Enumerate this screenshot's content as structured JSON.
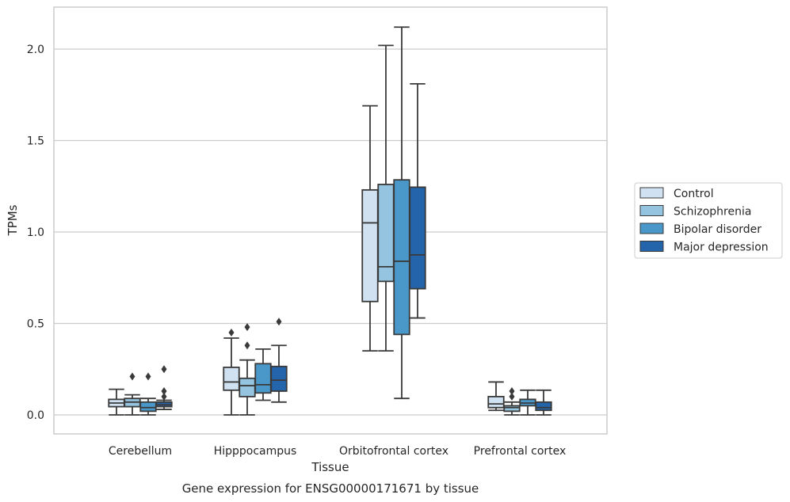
{
  "caption": "Gene expression for ENSG00000171671 by tissue",
  "chart_data": {
    "type": "box",
    "xlabel": "Tissue",
    "ylabel": "TPMs",
    "ylim": [
      -0.1,
      2.23
    ],
    "yticks": [
      0.0,
      0.5,
      1.0,
      1.5,
      2.0
    ],
    "ytick_labels": [
      "0.0",
      "0.5",
      "1.0",
      "1.5",
      "2.0"
    ],
    "grid": "horizontal",
    "legend_position": "right",
    "categories": [
      "Cerebellum",
      "Hipppocampus",
      "Orbitofrontal cortex",
      "Prefrontal cortex"
    ],
    "series": [
      {
        "name": "Control",
        "color": "#d0e1f2",
        "boxes": [
          {
            "whislo": 0.0,
            "q1": 0.045,
            "med": 0.065,
            "q3": 0.085,
            "whishi": 0.14,
            "fliers": []
          },
          {
            "whislo": 0.0,
            "q1": 0.135,
            "med": 0.18,
            "q3": 0.26,
            "whishi": 0.42,
            "fliers": [
              0.45
            ]
          },
          {
            "whislo": 0.35,
            "q1": 0.62,
            "med": 1.05,
            "q3": 1.23,
            "whishi": 1.69,
            "fliers": []
          },
          {
            "whislo": 0.025,
            "q1": 0.04,
            "med": 0.06,
            "q3": 0.1,
            "whishi": 0.18,
            "fliers": []
          }
        ]
      },
      {
        "name": "Schizophrenia",
        "color": "#94c4df",
        "boxes": [
          {
            "whislo": 0.0,
            "q1": 0.045,
            "med": 0.07,
            "q3": 0.09,
            "whishi": 0.11,
            "fliers": [
              0.21
            ]
          },
          {
            "whislo": 0.0,
            "q1": 0.1,
            "med": 0.16,
            "q3": 0.2,
            "whishi": 0.3,
            "fliers": [
              0.38,
              0.48
            ]
          },
          {
            "whislo": 0.35,
            "q1": 0.73,
            "med": 0.81,
            "q3": 1.26,
            "whishi": 2.02,
            "fliers": []
          },
          {
            "whislo": 0.0,
            "q1": 0.02,
            "med": 0.04,
            "q3": 0.05,
            "whishi": 0.07,
            "fliers": [
              0.1,
              0.13
            ]
          }
        ]
      },
      {
        "name": "Bipolar disorder",
        "color": "#4a98c9",
        "boxes": [
          {
            "whislo": 0.0,
            "q1": 0.02,
            "med": 0.04,
            "q3": 0.07,
            "whishi": 0.09,
            "fliers": [
              0.21
            ]
          },
          {
            "whislo": 0.08,
            "q1": 0.12,
            "med": 0.165,
            "q3": 0.28,
            "whishi": 0.36,
            "fliers": []
          },
          {
            "whislo": 0.09,
            "q1": 0.44,
            "med": 0.84,
            "q3": 1.285,
            "whishi": 2.12,
            "fliers": []
          },
          {
            "whislo": 0.0,
            "q1": 0.05,
            "med": 0.065,
            "q3": 0.085,
            "whishi": 0.135,
            "fliers": []
          }
        ]
      },
      {
        "name": "Major depression",
        "color": "#2464ab",
        "boxes": [
          {
            "whislo": 0.03,
            "q1": 0.045,
            "med": 0.055,
            "q3": 0.07,
            "whishi": 0.08,
            "fliers": [
              0.1,
              0.13,
              0.25
            ]
          },
          {
            "whislo": 0.07,
            "q1": 0.13,
            "med": 0.19,
            "q3": 0.265,
            "whishi": 0.38,
            "fliers": [
              0.51
            ]
          },
          {
            "whislo": 0.53,
            "q1": 0.69,
            "med": 0.875,
            "q3": 1.245,
            "whishi": 1.81,
            "fliers": []
          },
          {
            "whislo": 0.0,
            "q1": 0.025,
            "med": 0.04,
            "q3": 0.07,
            "whishi": 0.135,
            "fliers": []
          }
        ]
      }
    ]
  }
}
